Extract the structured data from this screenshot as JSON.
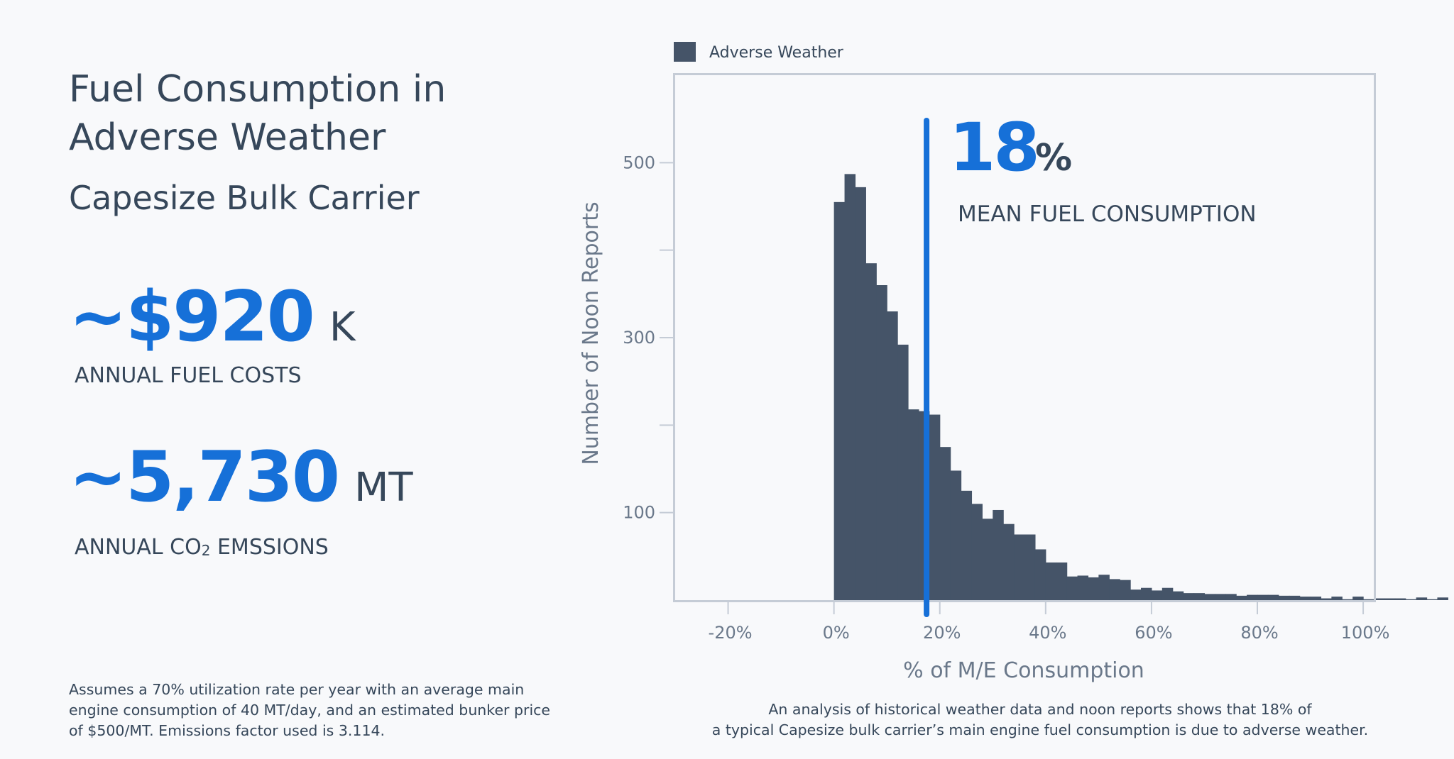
{
  "header": {
    "title": "Fuel Consumption in Adverse Weather",
    "subtitle": "Capesize Bulk Carrier"
  },
  "stats": [
    {
      "value": "~$920",
      "unit": "K",
      "label_text": "ANNUAL FUEL COSTS"
    },
    {
      "value": "~5,730",
      "unit": "MT",
      "label_prefix": "ANNUAL CO",
      "label_sub": "2",
      "label_suffix": " EMSSIONS"
    }
  ],
  "footnote": "Assumes a 70% utilization rate per year with an average main engine consumption of 40 MT/day, and an estimated bunker price of $500/MT. Emissions factor used is 3.114.",
  "caption_lines": [
    "An analysis of historical weather data and noon reports shows that 18% of",
    "a typical Capesize bulk carrier’s main engine fuel consumption is due to adverse weather."
  ],
  "colors": {
    "accent_blue": "#1670d8",
    "bar_fill": "#455468",
    "text_dark": "#36475a",
    "frame": "#c5ccd6"
  },
  "chart_data": {
    "type": "bar",
    "legend": {
      "label": "Adverse Weather",
      "position": "top-left"
    },
    "xlabel": "% of M/E Consumption",
    "ylabel": "Number of Noon Reports",
    "xlim": [
      -30,
      102
    ],
    "ylim": [
      0,
      600
    ],
    "x_ticks": [
      -20,
      0,
      20,
      40,
      60,
      80,
      100
    ],
    "x_tick_labels": [
      "-20%",
      "0%",
      "20%",
      "40%",
      "60%",
      "80%",
      "100%"
    ],
    "y_ticks": [
      100,
      200,
      300,
      400,
      500
    ],
    "y_tick_labels": [
      "100",
      "",
      "300",
      "",
      "500"
    ],
    "bin_width": 2,
    "bin_start": 0,
    "values": [
      455,
      487,
      472,
      385,
      360,
      330,
      292,
      218,
      216,
      212,
      175,
      148,
      125,
      110,
      93,
      103,
      87,
      75,
      75,
      58,
      43,
      43,
      27,
      28,
      26,
      29,
      24,
      23,
      12,
      14,
      11,
      14,
      10,
      8,
      8,
      7,
      7,
      7,
      5,
      6,
      6,
      6,
      5,
      5,
      4,
      4,
      2,
      4,
      1,
      4,
      1,
      2,
      2,
      2,
      1,
      3,
      1,
      3
    ],
    "mean_line": {
      "x": 17.5,
      "value_text": "18",
      "unit_text": "%",
      "label": "MEAN FUEL CONSUMPTION"
    }
  }
}
